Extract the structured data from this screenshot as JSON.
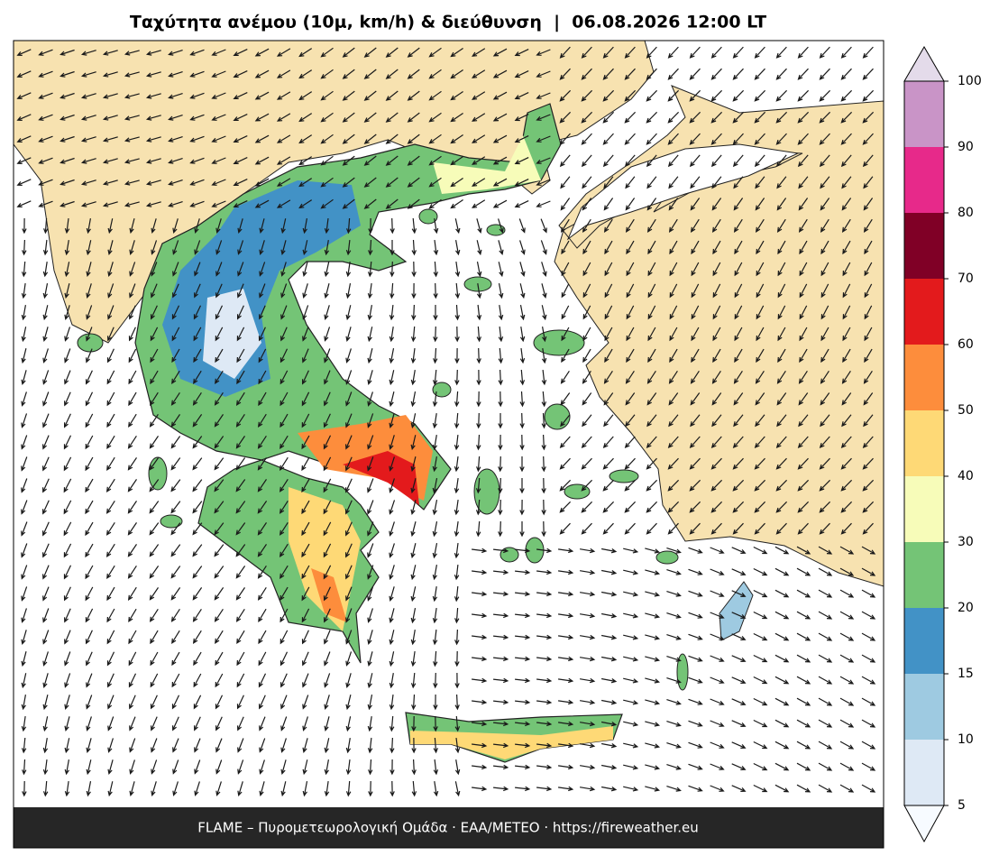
{
  "title": "Ταχύτητα ανέμου (10μ, km/h) & διεύθυνση  |  06.08.2026 12:00 LT",
  "footer": "FLAME – Πυρομετεωρολογική Ομάδα · ΕΑΑ/METEO · https://fireweather.eu",
  "colorbar": {
    "ticks": [
      5,
      10,
      15,
      20,
      30,
      40,
      50,
      60,
      70,
      80,
      90,
      100
    ],
    "colors": [
      "#dee9f5",
      "#9ecae1",
      "#4292c6",
      "#74c476",
      "#f7fcb9",
      "#fed976",
      "#fd8d3c",
      "#e31a1c",
      "#800026",
      "#e7298a",
      "#c994c7"
    ],
    "under_color": "#f7fbff",
    "over_color": "#e4dbea"
  }
}
